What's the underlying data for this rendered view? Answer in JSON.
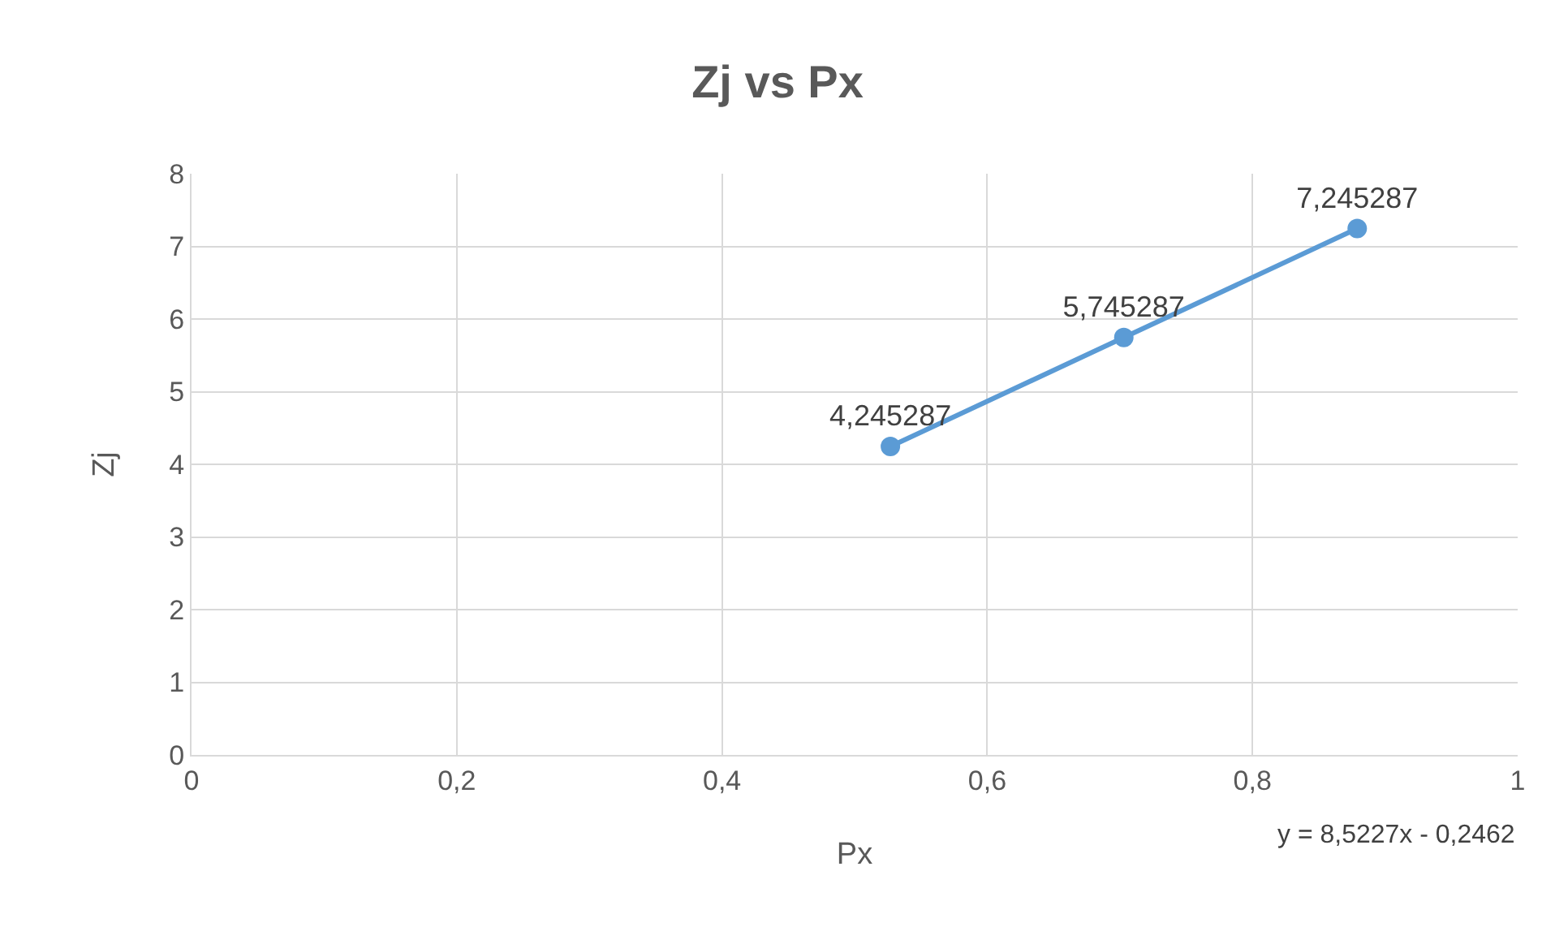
{
  "chart_data": {
    "type": "line",
    "title": "Zj vs Px",
    "xlabel": "Px",
    "ylabel": "Zj",
    "x": [
      0.527,
      0.703,
      0.879
    ],
    "series": [
      {
        "color": "#5b9bd5",
        "values": [
          4.245287,
          5.745287,
          7.245287
        ],
        "value_labels": [
          "4,245287",
          "5,745287",
          "7,245287"
        ]
      }
    ],
    "xlim": [
      0,
      1
    ],
    "xticks": [
      0,
      {
        "value": 0.2,
        "label": "0,2"
      },
      {
        "value": 0.4,
        "label": "0,4"
      },
      {
        "value": 0.6,
        "label": "0,6"
      },
      {
        "value": 0.8,
        "label": "0,8"
      },
      1
    ],
    "ylim": [
      0,
      8
    ],
    "yticks": [
      0,
      1,
      2,
      3,
      4,
      5,
      6,
      7,
      8
    ],
    "grid": true,
    "marker": "circle",
    "line_style": "solid",
    "legend": false,
    "annotations": [
      "y = 8,5227x - 0,2462"
    ]
  }
}
